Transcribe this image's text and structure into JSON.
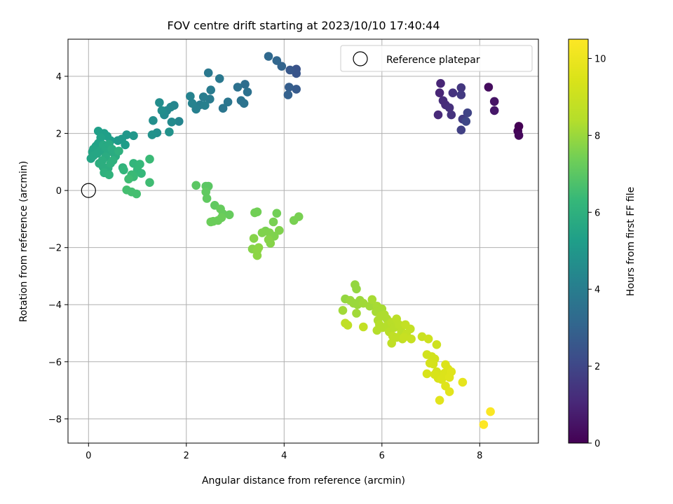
{
  "chart_data": {
    "type": "scatter",
    "title": "FOV centre drift starting at 2023/10/10 17:40:44",
    "xlabel": "Angular distance from reference (arcmin)",
    "ylabel": "Rotation from reference (arcmin)",
    "xlim": [
      -0.42,
      9.2
    ],
    "ylim": [
      -8.85,
      5.3
    ],
    "x_ticks": [
      0,
      2,
      4,
      6,
      8
    ],
    "y_ticks": [
      -8,
      -6,
      -4,
      -2,
      0,
      2,
      4
    ],
    "grid": true,
    "legend": {
      "placement": "top-right",
      "entries": [
        "Reference platepar"
      ]
    },
    "reference_point": {
      "x": 0,
      "y": 0,
      "label": "Reference platepar"
    },
    "colorbar": {
      "label": "Hours from first FF file",
      "colormap": "viridis",
      "range": [
        0,
        10.5
      ],
      "ticks": [
        0,
        2,
        4,
        6,
        8,
        10
      ]
    },
    "series": [
      {
        "color_value": "hours",
        "points": [
          {
            "x": 8.18,
            "y": 3.62,
            "c": 0.3
          },
          {
            "x": 8.78,
            "y": 2.08,
            "c": 0.1
          },
          {
            "x": 8.8,
            "y": 2.25,
            "c": 0.0
          },
          {
            "x": 8.8,
            "y": 1.93,
            "c": 0.2
          },
          {
            "x": 8.3,
            "y": 3.12,
            "c": 0.5
          },
          {
            "x": 8.3,
            "y": 2.8,
            "c": 0.6
          },
          {
            "x": 7.2,
            "y": 3.75,
            "c": 1.0
          },
          {
            "x": 7.18,
            "y": 3.42,
            "c": 1.0
          },
          {
            "x": 7.15,
            "y": 2.65,
            "c": 1.1
          },
          {
            "x": 7.25,
            "y": 3.15,
            "c": 1.2
          },
          {
            "x": 7.3,
            "y": 3.0,
            "c": 1.2
          },
          {
            "x": 7.38,
            "y": 2.9,
            "c": 1.3
          },
          {
            "x": 7.42,
            "y": 2.65,
            "c": 1.4
          },
          {
            "x": 7.45,
            "y": 3.42,
            "c": 1.4
          },
          {
            "x": 7.62,
            "y": 3.6,
            "c": 1.5
          },
          {
            "x": 7.62,
            "y": 3.35,
            "c": 1.6
          },
          {
            "x": 7.65,
            "y": 2.5,
            "c": 1.7
          },
          {
            "x": 7.62,
            "y": 2.12,
            "c": 1.8
          },
          {
            "x": 7.75,
            "y": 2.72,
            "c": 1.9
          },
          {
            "x": 7.72,
            "y": 2.42,
            "c": 2.0
          },
          {
            "x": 4.25,
            "y": 4.25,
            "c": 2.4
          },
          {
            "x": 4.25,
            "y": 4.1,
            "c": 2.5
          },
          {
            "x": 4.12,
            "y": 4.22,
            "c": 2.6
          },
          {
            "x": 4.25,
            "y": 3.55,
            "c": 2.7
          },
          {
            "x": 4.1,
            "y": 3.62,
            "c": 2.8
          },
          {
            "x": 4.08,
            "y": 3.35,
            "c": 2.9
          },
          {
            "x": 3.95,
            "y": 4.35,
            "c": 3.0
          },
          {
            "x": 3.85,
            "y": 4.55,
            "c": 3.1
          },
          {
            "x": 3.68,
            "y": 4.7,
            "c": 3.2
          },
          {
            "x": 3.2,
            "y": 3.72,
            "c": 3.4
          },
          {
            "x": 3.05,
            "y": 3.62,
            "c": 3.5
          },
          {
            "x": 3.25,
            "y": 3.45,
            "c": 3.5
          },
          {
            "x": 3.12,
            "y": 3.15,
            "c": 3.6
          },
          {
            "x": 3.18,
            "y": 3.05,
            "c": 3.6
          },
          {
            "x": 2.85,
            "y": 3.1,
            "c": 3.7
          },
          {
            "x": 2.75,
            "y": 2.88,
            "c": 3.7
          },
          {
            "x": 2.68,
            "y": 3.92,
            "c": 3.8
          },
          {
            "x": 2.45,
            "y": 4.12,
            "c": 3.8
          },
          {
            "x": 2.5,
            "y": 3.52,
            "c": 3.9
          },
          {
            "x": 2.48,
            "y": 3.2,
            "c": 3.9
          },
          {
            "x": 2.35,
            "y": 3.28,
            "c": 4.0
          },
          {
            "x": 2.28,
            "y": 3.0,
            "c": 4.0
          },
          {
            "x": 2.38,
            "y": 2.98,
            "c": 4.1
          },
          {
            "x": 2.2,
            "y": 2.85,
            "c": 4.1
          },
          {
            "x": 2.12,
            "y": 3.05,
            "c": 4.2
          },
          {
            "x": 2.08,
            "y": 3.3,
            "c": 4.2
          },
          {
            "x": 1.85,
            "y": 2.42,
            "c": 4.3
          },
          {
            "x": 1.75,
            "y": 2.98,
            "c": 4.3
          },
          {
            "x": 1.68,
            "y": 2.92,
            "c": 4.4
          },
          {
            "x": 1.6,
            "y": 2.8,
            "c": 4.4
          },
          {
            "x": 1.55,
            "y": 2.65,
            "c": 4.5
          },
          {
            "x": 1.7,
            "y": 2.4,
            "c": 4.5
          },
          {
            "x": 1.45,
            "y": 3.08,
            "c": 4.6
          },
          {
            "x": 1.5,
            "y": 2.8,
            "c": 4.6
          },
          {
            "x": 1.32,
            "y": 2.45,
            "c": 4.7
          },
          {
            "x": 1.4,
            "y": 2.02,
            "c": 4.7
          },
          {
            "x": 1.3,
            "y": 1.95,
            "c": 4.8
          },
          {
            "x": 1.65,
            "y": 2.05,
            "c": 4.8
          },
          {
            "x": 0.92,
            "y": 1.92,
            "c": 5.0
          },
          {
            "x": 0.78,
            "y": 1.95,
            "c": 5.0
          },
          {
            "x": 0.68,
            "y": 1.8,
            "c": 5.1
          },
          {
            "x": 0.6,
            "y": 1.75,
            "c": 5.1
          },
          {
            "x": 0.75,
            "y": 1.6,
            "c": 5.2
          },
          {
            "x": 0.45,
            "y": 1.75,
            "c": 5.2
          },
          {
            "x": 0.38,
            "y": 1.9,
            "c": 5.3
          },
          {
            "x": 0.32,
            "y": 2.0,
            "c": 5.3
          },
          {
            "x": 0.2,
            "y": 2.08,
            "c": 5.3
          },
          {
            "x": 0.25,
            "y": 1.85,
            "c": 5.4
          },
          {
            "x": 0.2,
            "y": 1.65,
            "c": 5.4
          },
          {
            "x": 0.15,
            "y": 1.55,
            "c": 5.4
          },
          {
            "x": 0.1,
            "y": 1.45,
            "c": 5.5
          },
          {
            "x": 0.08,
            "y": 1.35,
            "c": 5.5
          },
          {
            "x": 0.05,
            "y": 1.12,
            "c": 5.5
          },
          {
            "x": 0.1,
            "y": 1.22,
            "c": 5.6
          },
          {
            "x": 0.18,
            "y": 1.3,
            "c": 5.6
          },
          {
            "x": 0.25,
            "y": 1.4,
            "c": 5.6
          },
          {
            "x": 0.3,
            "y": 1.6,
            "c": 5.7
          },
          {
            "x": 0.35,
            "y": 1.5,
            "c": 5.7
          },
          {
            "x": 0.42,
            "y": 1.62,
            "c": 5.7
          },
          {
            "x": 0.4,
            "y": 1.35,
            "c": 5.7
          },
          {
            "x": 0.48,
            "y": 1.45,
            "c": 5.8
          },
          {
            "x": 0.52,
            "y": 1.3,
            "c": 5.8
          },
          {
            "x": 0.55,
            "y": 1.2,
            "c": 5.8
          },
          {
            "x": 0.35,
            "y": 1.18,
            "c": 5.8
          },
          {
            "x": 0.28,
            "y": 1.05,
            "c": 5.9
          },
          {
            "x": 0.22,
            "y": 0.95,
            "c": 5.9
          },
          {
            "x": 0.3,
            "y": 0.82,
            "c": 5.9
          },
          {
            "x": 0.4,
            "y": 0.78,
            "c": 5.9
          },
          {
            "x": 0.45,
            "y": 0.95,
            "c": 6.0
          },
          {
            "x": 0.5,
            "y": 1.05,
            "c": 6.0
          },
          {
            "x": 0.62,
            "y": 1.38,
            "c": 6.0
          },
          {
            "x": 0.32,
            "y": 0.62,
            "c": 6.0
          },
          {
            "x": 0.42,
            "y": 0.55,
            "c": 6.1
          },
          {
            "x": 0.7,
            "y": 0.8,
            "c": 6.1
          },
          {
            "x": 0.72,
            "y": 0.72,
            "c": 6.2
          },
          {
            "x": 0.92,
            "y": 0.95,
            "c": 6.2
          },
          {
            "x": 1.05,
            "y": 0.92,
            "c": 6.3
          },
          {
            "x": 1.0,
            "y": 0.72,
            "c": 6.3
          },
          {
            "x": 1.08,
            "y": 0.6,
            "c": 6.3
          },
          {
            "x": 1.25,
            "y": 1.1,
            "c": 6.4
          },
          {
            "x": 0.88,
            "y": 0.55,
            "c": 6.4
          },
          {
            "x": 0.92,
            "y": 0.48,
            "c": 6.4
          },
          {
            "x": 0.82,
            "y": 0.4,
            "c": 6.5
          },
          {
            "x": 1.25,
            "y": 0.28,
            "c": 6.5
          },
          {
            "x": 0.78,
            "y": 0.02,
            "c": 6.6
          },
          {
            "x": 0.88,
            "y": -0.05,
            "c": 6.6
          },
          {
            "x": 0.98,
            "y": -0.12,
            "c": 6.6
          },
          {
            "x": 2.2,
            "y": 0.18,
            "c": 7.0
          },
          {
            "x": 2.4,
            "y": 0.15,
            "c": 7.0
          },
          {
            "x": 2.45,
            "y": 0.15,
            "c": 7.0
          },
          {
            "x": 2.4,
            "y": -0.05,
            "c": 7.1
          },
          {
            "x": 2.42,
            "y": -0.28,
            "c": 7.1
          },
          {
            "x": 2.58,
            "y": -0.52,
            "c": 7.1
          },
          {
            "x": 2.7,
            "y": -0.65,
            "c": 7.2
          },
          {
            "x": 2.75,
            "y": -0.82,
            "c": 7.2
          },
          {
            "x": 2.88,
            "y": -0.85,
            "c": 7.2
          },
          {
            "x": 2.72,
            "y": -0.95,
            "c": 7.3
          },
          {
            "x": 2.65,
            "y": -1.05,
            "c": 7.3
          },
          {
            "x": 2.55,
            "y": -1.08,
            "c": 7.3
          },
          {
            "x": 2.5,
            "y": -1.1,
            "c": 7.3
          },
          {
            "x": 3.45,
            "y": -0.75,
            "c": 7.4
          },
          {
            "x": 3.4,
            "y": -0.78,
            "c": 7.4
          },
          {
            "x": 3.85,
            "y": -0.8,
            "c": 7.4
          },
          {
            "x": 4.3,
            "y": -0.92,
            "c": 7.5
          },
          {
            "x": 4.2,
            "y": -1.05,
            "c": 7.5
          },
          {
            "x": 3.78,
            "y": -1.1,
            "c": 7.5
          },
          {
            "x": 3.62,
            "y": -1.42,
            "c": 7.5
          },
          {
            "x": 3.55,
            "y": -1.48,
            "c": 7.6
          },
          {
            "x": 3.7,
            "y": -1.48,
            "c": 7.6
          },
          {
            "x": 3.9,
            "y": -1.4,
            "c": 7.6
          },
          {
            "x": 3.8,
            "y": -1.6,
            "c": 7.6
          },
          {
            "x": 3.68,
            "y": -1.72,
            "c": 7.7
          },
          {
            "x": 3.72,
            "y": -1.85,
            "c": 7.7
          },
          {
            "x": 3.38,
            "y": -1.68,
            "c": 7.7
          },
          {
            "x": 3.35,
            "y": -2.05,
            "c": 7.7
          },
          {
            "x": 3.45,
            "y": -2.1,
            "c": 7.8
          },
          {
            "x": 3.48,
            "y": -2.0,
            "c": 7.8
          },
          {
            "x": 3.45,
            "y": -2.28,
            "c": 7.8
          },
          {
            "x": 5.45,
            "y": -3.3,
            "c": 7.9
          },
          {
            "x": 5.48,
            "y": -3.45,
            "c": 7.9
          },
          {
            "x": 5.25,
            "y": -3.8,
            "c": 7.9
          },
          {
            "x": 5.35,
            "y": -3.85,
            "c": 8.0
          },
          {
            "x": 5.42,
            "y": -3.95,
            "c": 8.0
          },
          {
            "x": 5.5,
            "y": -4.0,
            "c": 8.0
          },
          {
            "x": 5.55,
            "y": -3.85,
            "c": 8.0
          },
          {
            "x": 5.62,
            "y": -3.95,
            "c": 8.1
          },
          {
            "x": 5.2,
            "y": -4.2,
            "c": 8.1
          },
          {
            "x": 5.48,
            "y": -4.3,
            "c": 8.1
          },
          {
            "x": 5.75,
            "y": -4.05,
            "c": 8.1
          },
          {
            "x": 5.8,
            "y": -3.82,
            "c": 8.2
          },
          {
            "x": 5.9,
            "y": -4.05,
            "c": 8.2
          },
          {
            "x": 5.88,
            "y": -4.25,
            "c": 8.2
          },
          {
            "x": 6.0,
            "y": -4.15,
            "c": 8.2
          },
          {
            "x": 5.98,
            "y": -4.4,
            "c": 8.3
          },
          {
            "x": 6.05,
            "y": -4.35,
            "c": 8.3
          },
          {
            "x": 5.92,
            "y": -4.55,
            "c": 8.3
          },
          {
            "x": 6.1,
            "y": -4.5,
            "c": 8.3
          },
          {
            "x": 5.95,
            "y": -4.7,
            "c": 8.4
          },
          {
            "x": 5.9,
            "y": -4.9,
            "c": 8.4
          },
          {
            "x": 6.02,
            "y": -4.8,
            "c": 8.4
          },
          {
            "x": 6.12,
            "y": -4.7,
            "c": 8.4
          },
          {
            "x": 6.15,
            "y": -4.95,
            "c": 8.5
          },
          {
            "x": 6.2,
            "y": -4.62,
            "c": 8.5
          },
          {
            "x": 6.25,
            "y": -4.8,
            "c": 8.5
          },
          {
            "x": 6.3,
            "y": -4.5,
            "c": 8.6
          },
          {
            "x": 6.35,
            "y": -4.7,
            "c": 8.6
          },
          {
            "x": 6.4,
            "y": -4.95,
            "c": 8.6
          },
          {
            "x": 6.22,
            "y": -5.1,
            "c": 8.7
          },
          {
            "x": 6.2,
            "y": -5.35,
            "c": 8.7
          },
          {
            "x": 6.3,
            "y": -5.15,
            "c": 8.7
          },
          {
            "x": 6.42,
            "y": -5.2,
            "c": 8.7
          },
          {
            "x": 5.25,
            "y": -4.65,
            "c": 8.7
          },
          {
            "x": 5.3,
            "y": -4.72,
            "c": 8.7
          },
          {
            "x": 5.62,
            "y": -4.78,
            "c": 8.8
          },
          {
            "x": 6.48,
            "y": -4.7,
            "c": 8.8
          },
          {
            "x": 6.58,
            "y": -4.85,
            "c": 8.8
          },
          {
            "x": 6.5,
            "y": -5.02,
            "c": 8.8
          },
          {
            "x": 6.45,
            "y": -5.15,
            "c": 8.9
          },
          {
            "x": 6.6,
            "y": -5.2,
            "c": 8.9
          },
          {
            "x": 6.82,
            "y": -5.12,
            "c": 9.0
          },
          {
            "x": 6.95,
            "y": -5.2,
            "c": 9.1
          },
          {
            "x": 7.12,
            "y": -5.4,
            "c": 9.1
          },
          {
            "x": 6.92,
            "y": -5.75,
            "c": 9.2
          },
          {
            "x": 7.02,
            "y": -5.82,
            "c": 9.2
          },
          {
            "x": 7.08,
            "y": -5.9,
            "c": 9.2
          },
          {
            "x": 6.98,
            "y": -6.05,
            "c": 9.3
          },
          {
            "x": 7.05,
            "y": -6.08,
            "c": 9.3
          },
          {
            "x": 7.12,
            "y": -6.35,
            "c": 9.3
          },
          {
            "x": 6.92,
            "y": -6.42,
            "c": 9.4
          },
          {
            "x": 7.08,
            "y": -6.45,
            "c": 9.4
          },
          {
            "x": 7.15,
            "y": -6.58,
            "c": 9.4
          },
          {
            "x": 7.22,
            "y": -6.62,
            "c": 9.5
          },
          {
            "x": 7.3,
            "y": -6.1,
            "c": 9.5
          },
          {
            "x": 7.28,
            "y": -6.4,
            "c": 9.5
          },
          {
            "x": 7.35,
            "y": -6.25,
            "c": 9.5
          },
          {
            "x": 7.42,
            "y": -6.35,
            "c": 9.6
          },
          {
            "x": 7.38,
            "y": -6.55,
            "c": 9.6
          },
          {
            "x": 7.3,
            "y": -6.85,
            "c": 9.6
          },
          {
            "x": 7.38,
            "y": -7.05,
            "c": 9.7
          },
          {
            "x": 7.18,
            "y": -7.35,
            "c": 9.7
          },
          {
            "x": 7.65,
            "y": -6.72,
            "c": 9.8
          },
          {
            "x": 8.22,
            "y": -7.75,
            "c": 10.4
          },
          {
            "x": 8.08,
            "y": -8.2,
            "c": 10.5
          }
        ]
      }
    ]
  }
}
